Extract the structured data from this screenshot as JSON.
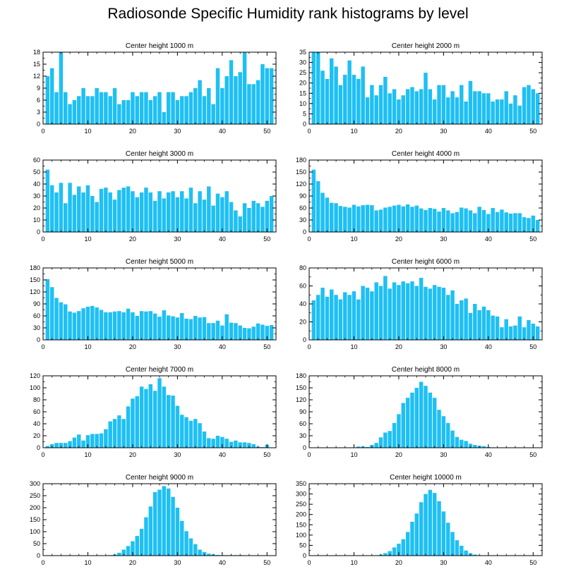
{
  "title": "Radiosonde Specific Humidity rank histograms by level",
  "bar_color": "#1ec0f4",
  "chart_data": [
    {
      "type": "bar",
      "title": "Center height 1000 m",
      "xlim": [
        0,
        52
      ],
      "xticks": [
        0,
        10,
        20,
        30,
        40,
        50
      ],
      "ylim": [
        0,
        18
      ],
      "yticks": [
        0,
        3,
        6,
        9,
        12,
        15,
        18
      ],
      "values": [
        12,
        14,
        8,
        18,
        8,
        5,
        6,
        7,
        9,
        7,
        7,
        9,
        8,
        8,
        7,
        9,
        5,
        6,
        6,
        8,
        7,
        8,
        8,
        6,
        7,
        8,
        3,
        8,
        8,
        6,
        7,
        7,
        8,
        9,
        11,
        7,
        9,
        5,
        14,
        9,
        12,
        16,
        12,
        13,
        18,
        10,
        10,
        11,
        15,
        14,
        14
      ]
    },
    {
      "type": "bar",
      "title": "Center height 2000 m",
      "xlim": [
        0,
        52
      ],
      "xticks": [
        0,
        10,
        20,
        30,
        40,
        50
      ],
      "ylim": [
        0,
        35
      ],
      "yticks": [
        0,
        5,
        10,
        15,
        20,
        25,
        30,
        35
      ],
      "values": [
        35,
        35,
        26,
        22,
        32,
        28,
        19,
        24,
        31,
        24,
        22,
        28,
        13,
        19,
        14,
        19,
        23,
        15,
        17,
        12,
        14,
        17,
        18,
        16,
        17,
        25,
        17,
        12,
        19,
        19,
        13,
        16,
        13,
        19,
        11,
        21,
        16,
        16,
        15,
        15,
        11,
        12,
        12,
        16,
        10,
        14,
        9,
        18,
        19,
        17,
        15
      ]
    },
    {
      "type": "bar",
      "title": "Center height 3000 m",
      "xlim": [
        0,
        52
      ],
      "xticks": [
        0,
        10,
        20,
        30,
        40,
        50
      ],
      "ylim": [
        0,
        60
      ],
      "yticks": [
        0,
        10,
        20,
        30,
        40,
        50,
        60
      ],
      "values": [
        52,
        39,
        33,
        41,
        24,
        41,
        31,
        38,
        33,
        39,
        30,
        25,
        36,
        37,
        33,
        27,
        35,
        37,
        38,
        34,
        29,
        33,
        37,
        33,
        26,
        34,
        28,
        33,
        34,
        29,
        34,
        28,
        37,
        24,
        34,
        27,
        38,
        22,
        32,
        29,
        34,
        25,
        18,
        13,
        24,
        20,
        26,
        24,
        21,
        26,
        30
      ]
    },
    {
      "type": "bar",
      "title": "Center height 4000 m",
      "xlim": [
        0,
        52
      ],
      "xticks": [
        0,
        10,
        20,
        30,
        40,
        50
      ],
      "ylim": [
        0,
        180
      ],
      "yticks": [
        0,
        30,
        60,
        90,
        120,
        150,
        180
      ],
      "values": [
        156,
        127,
        98,
        86,
        73,
        72,
        65,
        63,
        61,
        68,
        64,
        67,
        68,
        67,
        54,
        56,
        61,
        63,
        66,
        68,
        64,
        69,
        63,
        66,
        59,
        55,
        60,
        58,
        51,
        60,
        54,
        47,
        50,
        61,
        59,
        54,
        47,
        63,
        55,
        45,
        60,
        50,
        56,
        49,
        46,
        47,
        47,
        37,
        35,
        41,
        30
      ]
    },
    {
      "type": "bar",
      "title": "Center height 5000 m",
      "xlim": [
        0,
        52
      ],
      "xticks": [
        0,
        10,
        20,
        30,
        40,
        50
      ],
      "ylim": [
        0,
        180
      ],
      "yticks": [
        0,
        30,
        60,
        90,
        120,
        150,
        180
      ],
      "values": [
        152,
        132,
        105,
        94,
        89,
        71,
        68,
        72,
        79,
        83,
        85,
        81,
        75,
        69,
        69,
        71,
        72,
        69,
        78,
        69,
        60,
        72,
        71,
        72,
        66,
        58,
        74,
        61,
        59,
        56,
        67,
        53,
        52,
        60,
        56,
        57,
        42,
        42,
        48,
        36,
        64,
        43,
        42,
        36,
        30,
        29,
        33,
        41,
        38,
        35,
        37
      ]
    },
    {
      "type": "bar",
      "title": "Center height 6000 m",
      "xlim": [
        0,
        52
      ],
      "xticks": [
        0,
        10,
        20,
        30,
        40,
        50
      ],
      "ylim": [
        0,
        80
      ],
      "yticks": [
        0,
        20,
        40,
        60,
        80
      ],
      "values": [
        44,
        50,
        58,
        48,
        56,
        50,
        45,
        53,
        50,
        54,
        45,
        60,
        58,
        54,
        64,
        60,
        71,
        57,
        64,
        61,
        65,
        63,
        65,
        60,
        69,
        59,
        57,
        61,
        59,
        58,
        50,
        55,
        40,
        44,
        46,
        30,
        40,
        33,
        37,
        33,
        27,
        26,
        14,
        23,
        15,
        16,
        26,
        14,
        22,
        18,
        15
      ]
    },
    {
      "type": "bar",
      "title": "Center height 7000 m",
      "xlim": [
        0,
        52
      ],
      "xticks": [
        0,
        10,
        20,
        30,
        40,
        50
      ],
      "ylim": [
        0,
        120
      ],
      "yticks": [
        0,
        20,
        40,
        60,
        80,
        100,
        120
      ],
      "values": [
        3,
        6,
        8,
        8,
        8,
        11,
        17,
        22,
        12,
        21,
        23,
        23,
        24,
        31,
        44,
        48,
        54,
        48,
        69,
        82,
        86,
        102,
        98,
        106,
        95,
        116,
        102,
        88,
        87,
        70,
        55,
        51,
        45,
        48,
        41,
        27,
        16,
        15,
        20,
        18,
        15,
        10,
        12,
        9,
        9,
        8,
        6,
        2,
        1,
        5,
        0
      ]
    },
    {
      "type": "bar",
      "title": "Center height 8000 m",
      "xlim": [
        0,
        52
      ],
      "xticks": [
        0,
        10,
        20,
        30,
        40,
        50
      ],
      "ylim": [
        0,
        180
      ],
      "yticks": [
        0,
        30,
        60,
        90,
        120,
        150,
        180
      ],
      "values": [
        0,
        0,
        0,
        0,
        0,
        0,
        0,
        0,
        0,
        1,
        3,
        3,
        2,
        7,
        12,
        26,
        38,
        42,
        62,
        84,
        112,
        125,
        138,
        150,
        165,
        155,
        138,
        125,
        95,
        79,
        62,
        43,
        27,
        20,
        17,
        10,
        7,
        5,
        4,
        2,
        1,
        0,
        0,
        0,
        0,
        0,
        0,
        0,
        0,
        0,
        0
      ]
    },
    {
      "type": "bar",
      "title": "Center height 9000 m",
      "xlim": [
        0,
        52
      ],
      "xticks": [
        0,
        10,
        20,
        30,
        40,
        50
      ],
      "ylim": [
        0,
        300
      ],
      "yticks": [
        0,
        50,
        100,
        150,
        200,
        250,
        300
      ],
      "values": [
        1,
        1,
        1,
        1,
        1,
        1,
        1,
        1,
        1,
        1,
        1,
        1,
        1,
        1,
        2,
        5,
        12,
        25,
        40,
        60,
        82,
        112,
        160,
        205,
        265,
        275,
        290,
        280,
        245,
        200,
        145,
        102,
        72,
        48,
        25,
        15,
        8,
        5,
        3,
        2,
        2,
        2,
        2,
        2,
        1,
        1,
        1,
        1,
        1,
        1,
        1
      ]
    },
    {
      "type": "bar",
      "title": "Center height 10000 m",
      "xlim": [
        0,
        52
      ],
      "xticks": [
        0,
        10,
        20,
        30,
        40,
        50
      ],
      "ylim": [
        0,
        350
      ],
      "yticks": [
        0,
        50,
        100,
        150,
        200,
        250,
        300,
        350
      ],
      "values": [
        0,
        0,
        0,
        0,
        0,
        0,
        0,
        0,
        0,
        0,
        0,
        0,
        0,
        0,
        2,
        5,
        12,
        22,
        40,
        58,
        80,
        115,
        165,
        205,
        260,
        300,
        320,
        305,
        265,
        215,
        160,
        115,
        75,
        48,
        25,
        12,
        5,
        2,
        1,
        0,
        0,
        0,
        0,
        0,
        0,
        0,
        0,
        0,
        0,
        0,
        0
      ]
    }
  ]
}
